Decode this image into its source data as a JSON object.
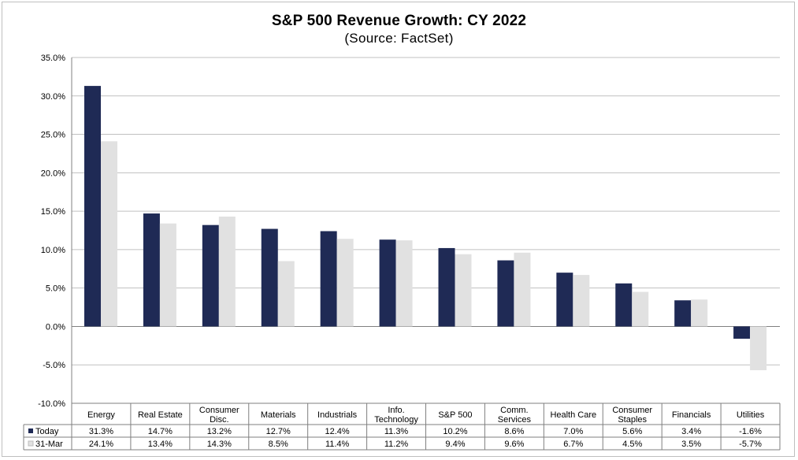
{
  "chart_data": {
    "type": "bar",
    "title": "S&P 500 Revenue Growth: CY 2022",
    "subtitle": "(Source: FactSet)",
    "categories": [
      "Energy",
      "Real Estate",
      "Consumer Disc.",
      "Materials",
      "Industrials",
      "Info. Technology",
      "S&P 500",
      "Comm. Services",
      "Health Care",
      "Consumer Staples",
      "Financials",
      "Utilities"
    ],
    "category_lines": [
      [
        "Energy"
      ],
      [
        "Real Estate"
      ],
      [
        "Consumer",
        "Disc."
      ],
      [
        "Materials"
      ],
      [
        "Industrials"
      ],
      [
        "Info.",
        "Technology"
      ],
      [
        "S&P 500"
      ],
      [
        "Comm.",
        "Services"
      ],
      [
        "Health Care"
      ],
      [
        "Consumer",
        "Staples"
      ],
      [
        "Financials"
      ],
      [
        "Utilities"
      ]
    ],
    "series": [
      {
        "name": "Today",
        "color": "#1f2a55",
        "values": [
          31.3,
          14.7,
          13.2,
          12.7,
          12.4,
          11.3,
          10.2,
          8.6,
          7.0,
          5.6,
          3.4,
          -1.6
        ],
        "labels": [
          "31.3%",
          "14.7%",
          "13.2%",
          "12.7%",
          "12.4%",
          "11.3%",
          "10.2%",
          "8.6%",
          "7.0%",
          "5.6%",
          "3.4%",
          "-1.6%"
        ]
      },
      {
        "name": "31-Mar",
        "color": "#e1e1e1",
        "values": [
          24.1,
          13.4,
          14.3,
          8.5,
          11.4,
          11.2,
          9.4,
          9.6,
          6.7,
          4.5,
          3.5,
          -5.7
        ],
        "labels": [
          "24.1%",
          "13.4%",
          "14.3%",
          "8.5%",
          "11.4%",
          "11.2%",
          "9.4%",
          "9.6%",
          "6.7%",
          "4.5%",
          "3.5%",
          "-5.7%"
        ]
      }
    ],
    "ylim": [
      -10,
      35
    ],
    "yticks": [
      35,
      30,
      25,
      20,
      15,
      10,
      5,
      0,
      -5,
      -10
    ],
    "ytick_labels": [
      "35.0%",
      "30.0%",
      "25.0%",
      "20.0%",
      "15.0%",
      "10.0%",
      "5.0%",
      "0.0%",
      "-5.0%",
      "-10.0%"
    ],
    "grid": true,
    "legend": "data-table"
  }
}
